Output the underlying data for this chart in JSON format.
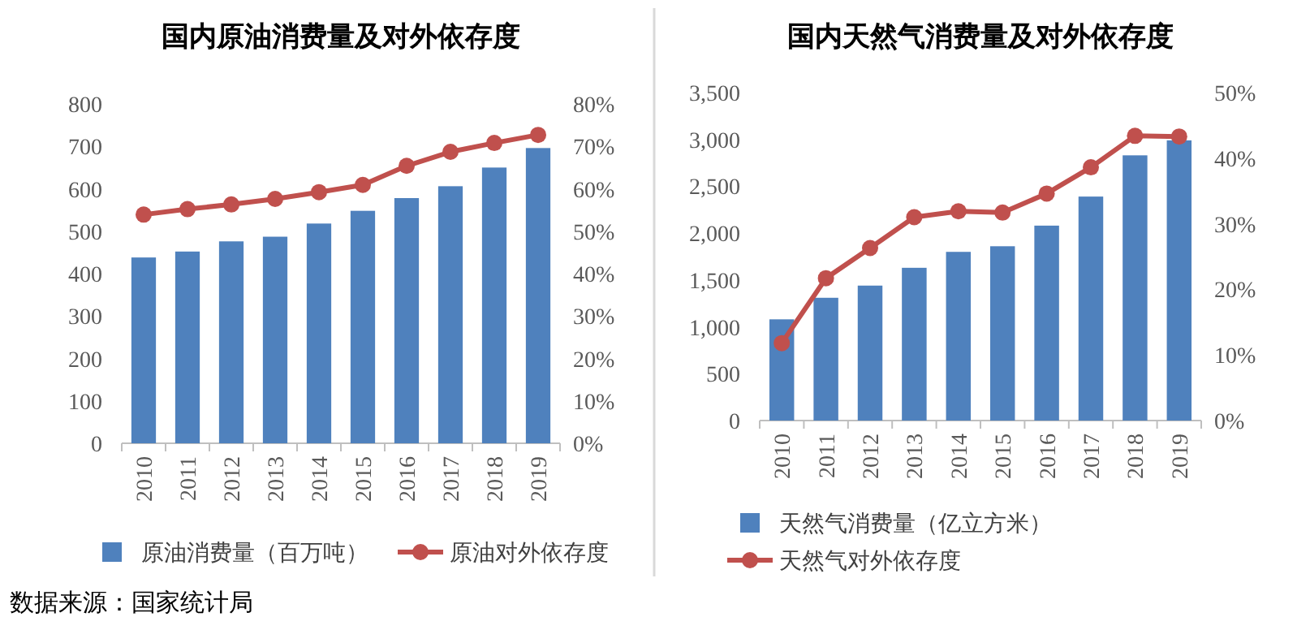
{
  "chart_data": [
    {
      "type": "bar",
      "title": "国内原油消费量及对外依存度",
      "categories": [
        "2010",
        "2011",
        "2012",
        "2013",
        "2014",
        "2015",
        "2016",
        "2017",
        "2018",
        "2019"
      ],
      "series": [
        {
          "name": "原油消费量（百万吨）",
          "color": "#4f81bd",
          "values": [
            438,
            452,
            476,
            487,
            518,
            548,
            578,
            606,
            650,
            696
          ]
        },
        {
          "name": "原油对外依存度",
          "type": "line",
          "axis": "y2",
          "color": "#c0504d",
          "values": [
            53.9,
            55.2,
            56.3,
            57.6,
            59.2,
            60.9,
            65.4,
            68.7,
            70.8,
            72.7
          ]
        }
      ],
      "ylim": [
        0,
        800
      ],
      "yticks": [
        0,
        100,
        200,
        300,
        400,
        500,
        600,
        700,
        800
      ],
      "y2lim": [
        0,
        80
      ],
      "y2ticks": [
        {
          "value": 0,
          "label": "0%"
        },
        {
          "value": 10,
          "label": "10%"
        },
        {
          "value": 20,
          "label": "20%"
        },
        {
          "value": 30,
          "label": "30%"
        },
        {
          "value": 40,
          "label": "40%"
        },
        {
          "value": 50,
          "label": "50%"
        },
        {
          "value": 60,
          "label": "60%"
        },
        {
          "value": 70,
          "label": "70%"
        },
        {
          "value": 80,
          "label": "80%"
        }
      ],
      "legend": "bottom",
      "marker": "circle",
      "annotations": [
        "数据来源：国家统计局"
      ]
    },
    {
      "type": "bar",
      "title": "国内天然气消费量及对外依存度",
      "categories": [
        "2010",
        "2011",
        "2012",
        "2013",
        "2014",
        "2015",
        "2016",
        "2017",
        "2018",
        "2019"
      ],
      "series": [
        {
          "name": "天然气消费量（亿立方米）",
          "color": "#4f81bd",
          "values": [
            1080,
            1310,
            1440,
            1630,
            1800,
            1860,
            2080,
            2390,
            2830,
            2990
          ]
        },
        {
          "name": "天然气对外依存度",
          "type": "line",
          "axis": "y2",
          "color": "#c0504d",
          "values": [
            11.8,
            21.7,
            26.3,
            31.0,
            31.9,
            31.7,
            34.6,
            38.6,
            43.4,
            43.3
          ]
        }
      ],
      "ylim": [
        0,
        3500
      ],
      "yticks": [
        0,
        {
          "value": 500,
          "label": "500"
        },
        {
          "value": 1000,
          "label": "1,000"
        },
        {
          "value": 1500,
          "label": "1,500"
        },
        {
          "value": 2000,
          "label": "2,000"
        },
        {
          "value": 2500,
          "label": "2,500"
        },
        {
          "value": 3000,
          "label": "3,000"
        },
        {
          "value": 3500,
          "label": "3,500"
        }
      ],
      "y2lim": [
        0,
        50
      ],
      "y2ticks": [
        {
          "value": 0,
          "label": "0%"
        },
        {
          "value": 10,
          "label": "10%"
        },
        {
          "value": 20,
          "label": "20%"
        },
        {
          "value": 30,
          "label": "30%"
        },
        {
          "value": 40,
          "label": "40%"
        },
        {
          "value": 50,
          "label": "50%"
        }
      ],
      "legend": "bottom",
      "marker": "circle"
    }
  ]
}
